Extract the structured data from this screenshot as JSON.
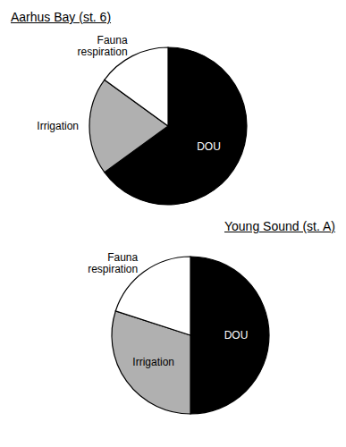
{
  "chart_data": [
    {
      "type": "pie",
      "title": "Aarhus Bay (st. 6)",
      "categories": [
        "DOU",
        "Irrigation",
        "Fauna\nrespiration"
      ],
      "values": [
        65,
        20,
        15
      ],
      "colors": [
        "#000000",
        "#b0b0b0",
        "#ffffff"
      ]
    },
    {
      "type": "pie",
      "title": "Young Sound (st. A)",
      "categories": [
        "DOU",
        "Irrigation",
        "Fauna\nrespiration"
      ],
      "values": [
        50,
        30,
        20
      ],
      "colors": [
        "#000000",
        "#b0b0b0",
        "#ffffff"
      ]
    }
  ]
}
